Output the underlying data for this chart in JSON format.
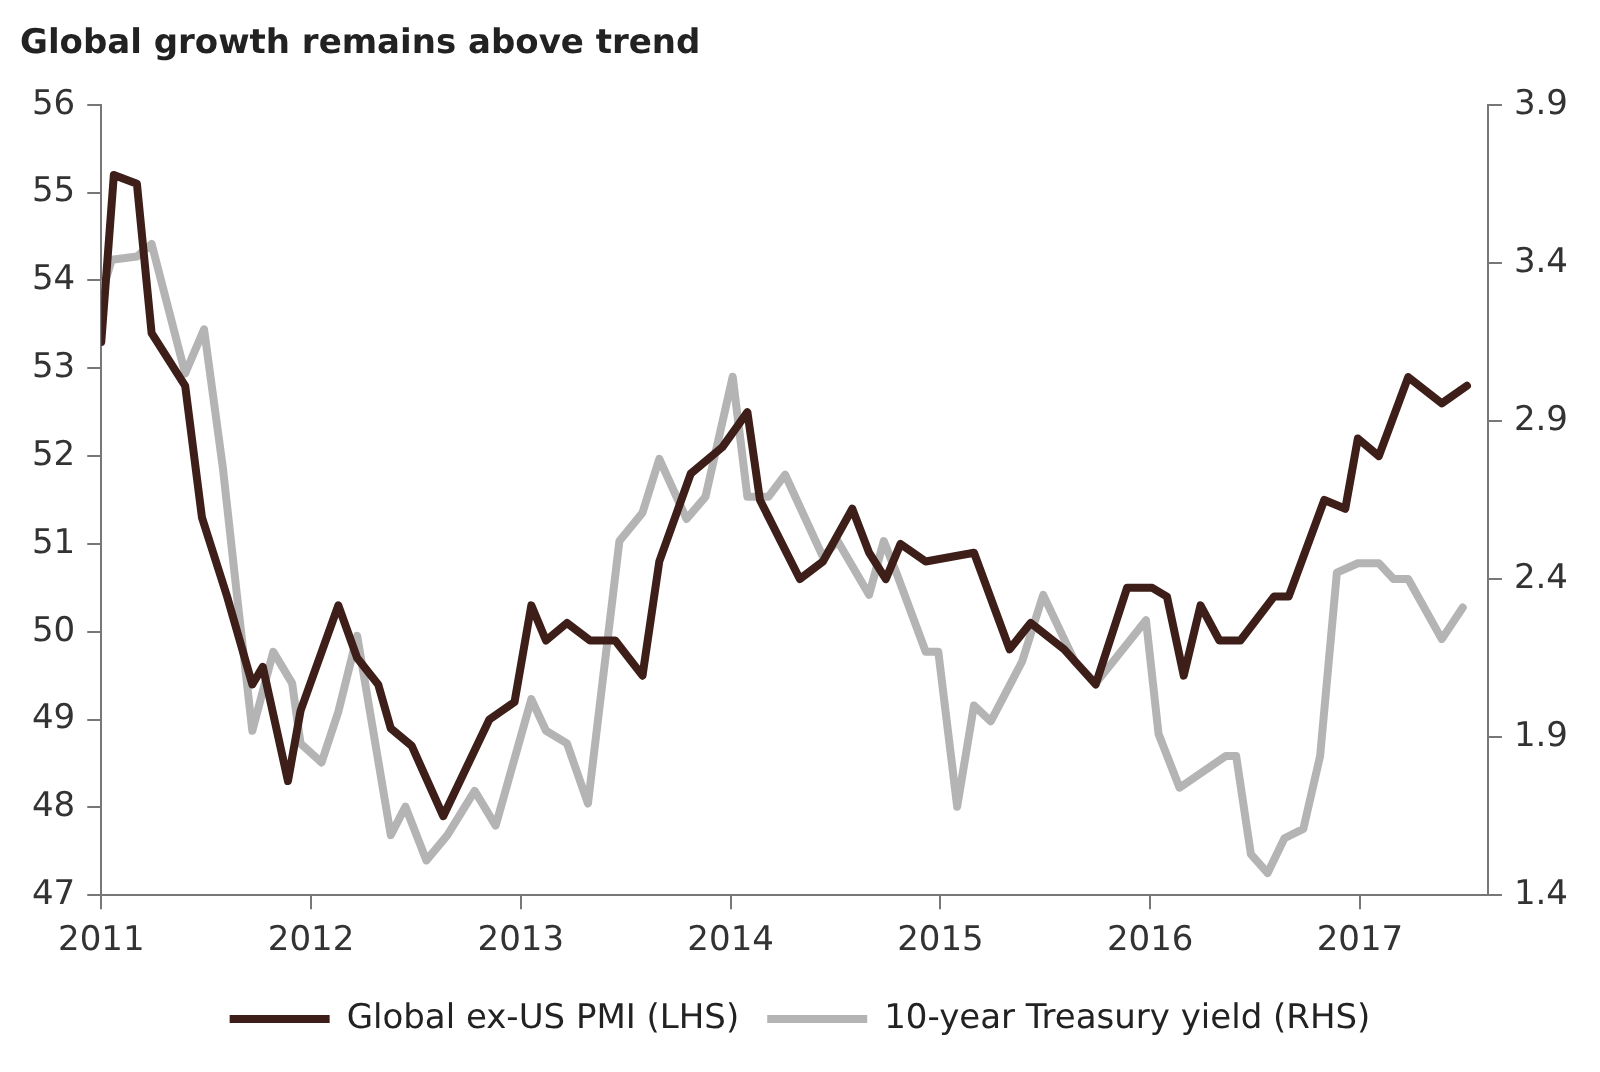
{
  "chart_data": {
    "type": "line",
    "title": "Global growth remains above trend",
    "xlim": [
      2011,
      2017.61
    ],
    "xticks": [
      2011,
      2012,
      2013,
      2014,
      2015,
      2016,
      2017
    ],
    "ylim": [
      47,
      56
    ],
    "yticks": [
      47,
      48,
      49,
      50,
      51,
      52,
      53,
      54,
      55,
      56
    ],
    "y2lim": [
      1.4,
      3.9
    ],
    "y2ticks": [
      1.4,
      1.9,
      2.4,
      2.9,
      3.4,
      3.9
    ],
    "legend": "bottom",
    "marker": "none",
    "series": [
      {
        "name": "Global ex-US PMI (LHS)",
        "color": "#3d1e18",
        "x": [
          2011.0,
          2011.06,
          2011.17,
          2011.24,
          2011.4,
          2011.48,
          2011.6,
          2011.72,
          2011.77,
          2011.89,
          2011.95,
          2012.13,
          2012.22,
          2012.32,
          2012.38,
          2012.48,
          2012.63,
          2012.85,
          2012.97,
          2013.05,
          2013.12,
          2013.22,
          2013.33,
          2013.45,
          2013.58,
          2013.66,
          2013.81,
          2013.96,
          2014.08,
          2014.14,
          2014.33,
          2014.44,
          2014.58,
          2014.66,
          2014.74,
          2014.81,
          2014.93,
          2015.16,
          2015.33,
          2015.43,
          2015.59,
          2015.74,
          2015.89,
          2016.01,
          2016.08,
          2016.16,
          2016.24,
          2016.33,
          2016.43,
          2016.59,
          2016.66,
          2016.83,
          2016.93,
          2016.99,
          2017.09,
          2017.23,
          2017.39,
          2017.51
        ],
        "values": [
          53.3,
          55.2,
          55.1,
          53.4,
          52.8,
          51.3,
          50.4,
          49.4,
          49.6,
          48.3,
          49.1,
          50.3,
          49.7,
          49.4,
          48.9,
          48.7,
          47.9,
          49.0,
          49.2,
          50.3,
          49.9,
          50.1,
          49.9,
          49.9,
          49.5,
          50.8,
          51.8,
          52.1,
          52.5,
          51.5,
          50.6,
          50.8,
          51.4,
          50.9,
          50.6,
          51.0,
          50.8,
          50.9,
          49.8,
          50.1,
          49.8,
          49.4,
          50.5,
          50.5,
          50.4,
          49.5,
          50.3,
          49.9,
          49.9,
          50.4,
          50.4,
          51.5,
          51.4,
          52.2,
          52.0,
          52.9,
          52.6,
          52.8
        ]
      },
      {
        "name": "10-year Treasury yield (RHS)",
        "color": "#b4b4b4",
        "axis": "y2",
        "x": [
          2011.0,
          2011.05,
          2011.17,
          2011.24,
          2011.4,
          2011.49,
          2011.58,
          2011.65,
          2011.72,
          2011.82,
          2011.91,
          2011.95,
          2012.05,
          2012.13,
          2012.22,
          2012.38,
          2012.45,
          2012.55,
          2012.65,
          2012.78,
          2012.88,
          2013.05,
          2013.12,
          2013.22,
          2013.32,
          2013.47,
          2013.58,
          2013.66,
          2013.79,
          2013.88,
          2014.01,
          2014.08,
          2014.18,
          2014.26,
          2014.44,
          2014.51,
          2014.66,
          2014.73,
          2014.79,
          2014.93,
          2014.99,
          2015.08,
          2015.16,
          2015.24,
          2015.39,
          2015.49,
          2015.59,
          2015.64,
          2015.74,
          2015.98,
          2016.04,
          2016.14,
          2016.36,
          2016.41,
          2016.48,
          2016.56,
          2016.64,
          2016.73,
          2016.81,
          2016.89,
          2016.99,
          2017.09,
          2017.16,
          2017.23,
          2017.39,
          2017.49
        ],
        "values": [
          3.3,
          3.41,
          3.42,
          3.46,
          3.05,
          3.19,
          2.75,
          2.33,
          1.92,
          2.17,
          2.07,
          1.88,
          1.82,
          1.98,
          2.22,
          1.59,
          1.68,
          1.51,
          1.59,
          1.73,
          1.62,
          2.02,
          1.92,
          1.88,
          1.69,
          2.52,
          2.61,
          2.78,
          2.59,
          2.66,
          3.04,
          2.66,
          2.66,
          2.73,
          2.47,
          2.52,
          2.35,
          2.52,
          2.42,
          2.17,
          2.17,
          1.68,
          2.0,
          1.95,
          2.14,
          2.35,
          2.21,
          2.14,
          2.07,
          2.27,
          1.91,
          1.74,
          1.84,
          1.84,
          1.53,
          1.47,
          1.58,
          1.61,
          1.84,
          2.42,
          2.45,
          2.45,
          2.4,
          2.4,
          2.21,
          2.31
        ]
      }
    ]
  }
}
